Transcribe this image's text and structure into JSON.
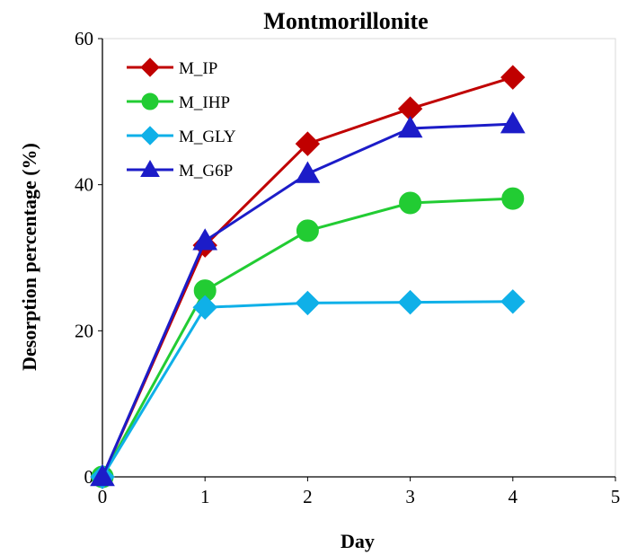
{
  "chart_data": {
    "type": "line",
    "title": "Montmorillonite",
    "xlabel": "Day",
    "ylabel": "Desorption percentage (%)",
    "xlim": [
      0,
      5
    ],
    "ylim": [
      0,
      60
    ],
    "xticks": [
      0,
      1,
      2,
      3,
      4,
      5
    ],
    "yticks": [
      0,
      20,
      40,
      60
    ],
    "grid": false,
    "legend_position": "top-left",
    "x": [
      0,
      1,
      2,
      3,
      4
    ],
    "series": [
      {
        "name": "M_IP",
        "values": [
          0,
          31.7,
          45.6,
          50.4,
          54.7
        ],
        "color": "#c00000",
        "marker": "diamond"
      },
      {
        "name": "M_IHP",
        "values": [
          0,
          25.5,
          33.7,
          37.5,
          38.1
        ],
        "color": "#22cc33",
        "marker": "circle"
      },
      {
        "name": "M_GLY",
        "values": [
          0,
          23.2,
          23.8,
          23.9,
          24.0
        ],
        "color": "#0fb0e8",
        "marker": "diamond"
      },
      {
        "name": "M_G6P",
        "values": [
          0,
          32.3,
          41.5,
          47.7,
          48.3
        ],
        "color": "#1c1cc8",
        "marker": "triangle"
      }
    ]
  }
}
